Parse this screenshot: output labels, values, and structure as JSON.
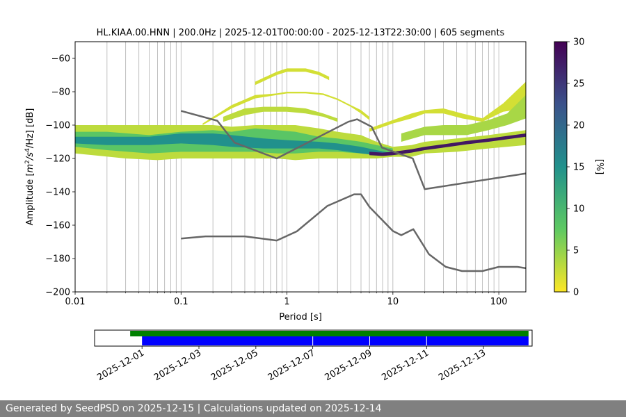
{
  "chart_data": [
    {
      "type": "heatmap",
      "title": "HL.KIAA.00.HNN | 200.0Hz | 2025-12-01T00:00:00 - 2025-12-13T22:30:00 | 605 segments",
      "xlabel": "Period [s]",
      "ylabel_parts": [
        "Amplitude [",
        "m",
        "2",
        "/",
        "s",
        "4",
        "/Hz] [dB]"
      ],
      "x_scale": "log",
      "xlim": [
        0.01,
        180
      ],
      "ylim": [
        -200,
        -50
      ],
      "x_ticks": [
        {
          "value": 0.01,
          "label": "0.01"
        },
        {
          "value": 0.1,
          "label": "0.1"
        },
        {
          "value": 1,
          "label": "1"
        },
        {
          "value": 10,
          "label": "10"
        },
        {
          "value": 100,
          "label": "100"
        }
      ],
      "y_ticks": [
        {
          "value": -60,
          "label": "−60"
        },
        {
          "value": -80,
          "label": "−80"
        },
        {
          "value": -100,
          "label": "−100"
        },
        {
          "value": -120,
          "label": "−120"
        },
        {
          "value": -140,
          "label": "−140"
        },
        {
          "value": -160,
          "label": "−160"
        },
        {
          "value": -180,
          "label": "−180"
        },
        {
          "value": -200,
          "label": "−200"
        }
      ],
      "grid": "vertical",
      "colorbar": {
        "label": "[%]",
        "range": [
          0,
          30
        ],
        "ticks": [
          {
            "value": 0,
            "label": "0"
          },
          {
            "value": 5,
            "label": "5"
          },
          {
            "value": 10,
            "label": "10"
          },
          {
            "value": 15,
            "label": "15"
          },
          {
            "value": 20,
            "label": "20"
          },
          {
            "value": 25,
            "label": "25"
          },
          {
            "value": 30,
            "label": "30"
          }
        ],
        "colors": [
          "#fde725",
          "#5ec962",
          "#21918c",
          "#3b528b",
          "#440154"
        ]
      },
      "series": [
        {
          "color": "#666666",
          "x": [
            0.1,
            0.22,
            0.32,
            0.8,
            3.8,
            4.6,
            6.3,
            7.9,
            15.4,
            20,
            180
          ],
          "y": [
            -91.5,
            -97.4,
            -110.5,
            -120,
            -98,
            -96.5,
            -101,
            -113.5,
            -120,
            -138.4,
            -129
          ]
        },
        {
          "color": "#666666",
          "x": [
            0.1,
            0.17,
            0.4,
            0.8,
            1.24,
            2.4,
            4.3,
            5.0,
            6.0,
            10.0,
            12.0,
            15.6,
            21.9,
            31.6,
            45.0,
            70.0,
            100.0,
            150.0,
            180.0
          ],
          "y": [
            -168,
            -166.7,
            -166.7,
            -169.2,
            -163.7,
            -148.5,
            -141.5,
            -141.5,
            -149,
            -163.5,
            -166,
            -162.4,
            -177.4,
            -185,
            -187.5,
            -187.5,
            -185,
            -185,
            -185.8
          ]
        }
      ],
      "density_bands": [
        {
          "x": [
            0.01,
            0.03,
            0.06,
            0.1,
            0.2,
            0.3,
            0.5,
            0.8,
            1.2,
            2,
            3,
            5,
            7,
            10,
            15,
            20,
            40,
            80,
            180
          ],
          "y_low": [
            -117,
            -120,
            -121,
            -120,
            -120,
            -120,
            -120,
            -120,
            -121,
            -120,
            -120,
            -120,
            -120,
            -119,
            -119,
            -117,
            -116,
            -114,
            -112
          ],
          "y_high": [
            -100,
            -100,
            -100,
            -100,
            -100,
            -101,
            -100,
            -100,
            -100,
            -102,
            -104,
            -106,
            -110,
            -113,
            -112,
            -110,
            -108,
            -106,
            -103
          ],
          "percent": 3
        },
        {
          "x": [
            0.01,
            0.02,
            0.05,
            0.1,
            0.2,
            0.3,
            0.5,
            0.8,
            1.2,
            2,
            3,
            5,
            7,
            10
          ],
          "y_low": [
            -113,
            -115,
            -117,
            -116,
            -116,
            -116,
            -116,
            -117,
            -117,
            -116,
            -116,
            -117,
            -118,
            -117
          ],
          "y_high": [
            -104,
            -104,
            -106,
            -104,
            -103,
            -104,
            -102,
            -103,
            -104,
            -107,
            -108,
            -110,
            -112,
            -114
          ],
          "percent": 8
        },
        {
          "x": [
            0.01,
            0.02,
            0.05,
            0.1,
            0.2,
            0.3,
            0.6,
            1,
            2,
            3,
            5,
            7,
            10
          ],
          "y_low": [
            -111,
            -112,
            -112,
            -111,
            -112,
            -113,
            -114,
            -114,
            -114,
            -115,
            -117,
            -118,
            -118
          ],
          "y_high": [
            -107,
            -107,
            -107,
            -105,
            -105,
            -106,
            -108,
            -109,
            -110,
            -111,
            -113,
            -115,
            -117
          ],
          "percent": 15
        },
        {
          "x": [
            6,
            8,
            10,
            15,
            20,
            30,
            50,
            80,
            120,
            180
          ],
          "y_low": [
            -118,
            -118.5,
            -118,
            -116.5,
            -115,
            -113.5,
            -111.5,
            -110,
            -108.5,
            -107
          ],
          "y_high": [
            -116,
            -116.5,
            -116,
            -114.5,
            -113,
            -111.5,
            -109.5,
            -108,
            -106.5,
            -105
          ],
          "percent": 28
        }
      ],
      "density_patches": [
        {
          "x": [
            0.16,
            0.3,
            0.5,
            0.8,
            1.0,
            1.5,
            2.2,
            3.0,
            4.0,
            5.0,
            6.0
          ],
          "y_low": [
            -100,
            -90,
            -84,
            -82,
            -81,
            -81,
            -82,
            -85,
            -89,
            -93,
            -97
          ],
          "y_high": [
            -99,
            -88,
            -82,
            -81,
            -80,
            -80,
            -81,
            -84,
            -88,
            -91,
            -95
          ],
          "percent": 2
        },
        {
          "x": [
            0.25,
            0.4,
            0.6,
            1.0,
            1.5,
            2.2,
            3.0
          ],
          "y_low": [
            -98,
            -94,
            -92,
            -92,
            -93,
            -95,
            -98
          ],
          "y_high": [
            -95,
            -90,
            -89,
            -89,
            -90,
            -93,
            -96
          ],
          "percent": 3
        },
        {
          "x": [
            0.5,
            0.8,
            1.0,
            1.5,
            2.0,
            2.5
          ],
          "y_low": [
            -76,
            -70,
            -68,
            -68,
            -70,
            -73
          ],
          "y_high": [
            -74,
            -68,
            -66,
            -66,
            -68,
            -71
          ],
          "percent": 2
        },
        {
          "x": [
            6,
            10,
            15,
            20,
            30,
            45,
            70,
            110,
            180
          ],
          "y_low": [
            -104,
            -99,
            -96,
            -93,
            -93,
            -96,
            -98,
            -92,
            -90
          ],
          "y_high": [
            -102,
            -97,
            -93,
            -91,
            -90,
            -93,
            -96,
            -87,
            -74
          ],
          "percent": 2
        },
        {
          "x": [
            12,
            20,
            30,
            50,
            80,
            120,
            180
          ],
          "y_low": [
            -110,
            -106,
            -106,
            -106,
            -103,
            -100,
            -96
          ],
          "y_high": [
            -105,
            -101,
            -100,
            -100,
            -97,
            -93,
            -82
          ],
          "percent": 4
        }
      ]
    },
    {
      "type": "timeline",
      "x_tick_labels": [
        "2025-12-01",
        "2025-12-03",
        "2025-12-05",
        "2025-12-07",
        "2025-12-09",
        "2025-12-11",
        "2025-12-13"
      ],
      "bars": [
        {
          "color": "#008000",
          "start": "2025-11-30T14:00:00",
          "end": "2025-12-14T14:00:00"
        },
        {
          "color": "#0000ff",
          "start": "2025-12-01T00:00:00",
          "end": "2025-12-14T14:00:00"
        }
      ],
      "gaps": [
        "2025-12-07T00:00:00",
        "2025-12-09T00:00:00",
        "2025-12-11T00:00:00"
      ]
    }
  ],
  "footer": {
    "text": "Generated by SeedPSD on 2025-12-15 | Calculations updated on 2025-12-14"
  }
}
